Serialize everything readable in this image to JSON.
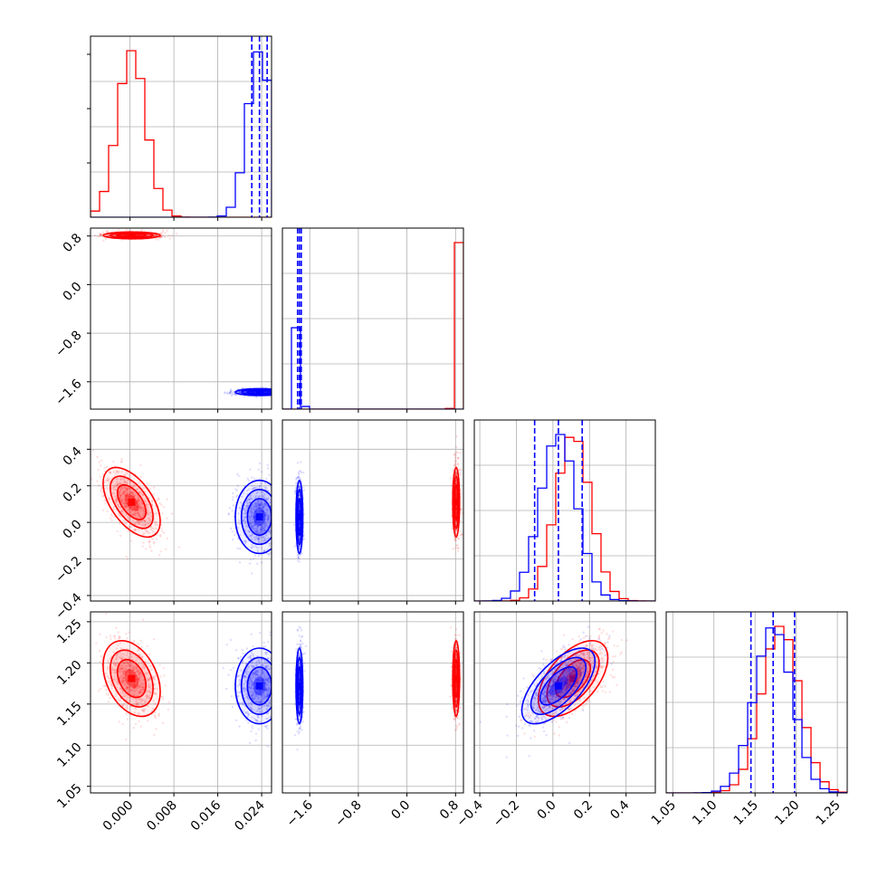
{
  "chart_data": {
    "type": "corner",
    "grid": true,
    "parameters": [
      {
        "ticks": [
          0.0,
          0.008,
          0.016,
          0.024
        ],
        "tick_labels": [
          "0.000",
          "0.008",
          "0.016",
          "0.024"
        ],
        "range": [
          -0.0072,
          0.0258
        ]
      },
      {
        "ticks": [
          -1.6,
          -0.8,
          0.0,
          0.8
        ],
        "tick_labels": [
          "−1.6",
          "−0.8",
          "0.0",
          "0.8"
        ],
        "range": [
          -2.05,
          0.93
        ]
      },
      {
        "ticks": [
          -0.4,
          -0.2,
          0.0,
          0.2,
          0.4
        ],
        "tick_labels": [
          "−0.4",
          "−0.2",
          "0.0",
          "0.2",
          "0.4"
        ],
        "range": [
          -0.43,
          0.56
        ]
      },
      {
        "ticks": [
          1.05,
          1.1,
          1.15,
          1.2,
          1.25
        ],
        "tick_labels": [
          "1.05",
          "1.10",
          "1.15",
          "1.20",
          "1.25"
        ],
        "range": [
          1.042,
          1.262
        ]
      }
    ],
    "series": [
      {
        "color": "#ff0000",
        "means": [
          0.0003,
          0.81,
          0.11,
          1.181
        ],
        "sds": [
          0.0026,
          0.028,
          0.095,
          0.023
        ],
        "correlations": {
          "0-2": -0.55,
          "0-3": -0.35,
          "2-3": 0.55
        },
        "quantiles_shown": false
      },
      {
        "color": "#0000ff",
        "means": [
          0.0236,
          -1.77,
          0.03,
          1.172
        ],
        "sds": [
          0.0022,
          0.028,
          0.1,
          0.023
        ],
        "correlations": {
          "2-3": 0.65
        },
        "quantiles_shown": true,
        "quantile_lines": [
          [
            0.0222,
            0.0236,
            0.025
          ],
          [
            -1.8,
            -1.77,
            -1.74
          ],
          [
            -0.1,
            0.03,
            0.16
          ],
          [
            1.145,
            1.172,
            1.198
          ]
        ]
      }
    ]
  }
}
